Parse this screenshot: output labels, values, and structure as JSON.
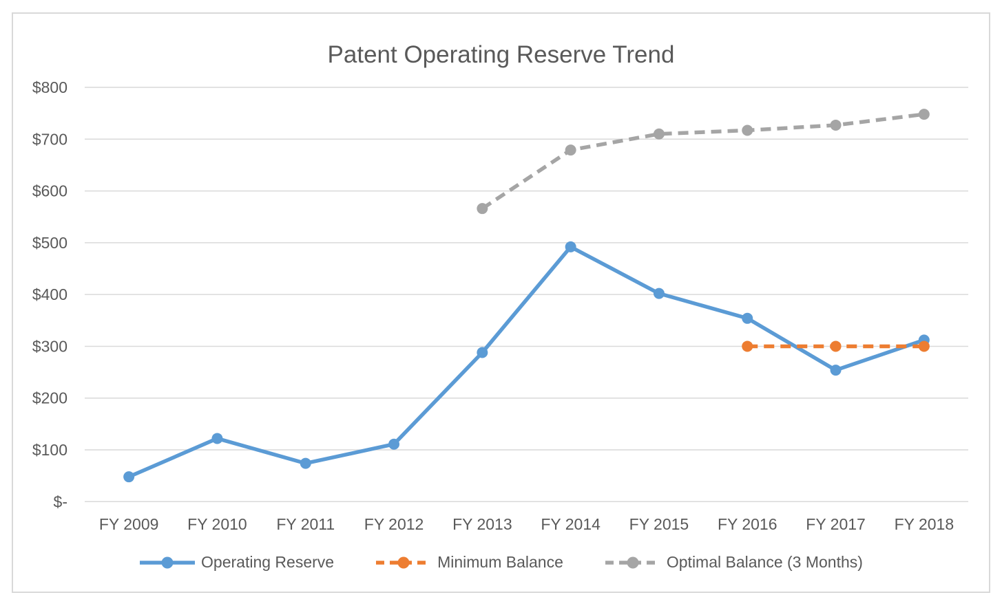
{
  "chart_data": {
    "type": "line",
    "title": "Patent Operating Reserve Trend",
    "xlabel": "",
    "ylabel": "",
    "categories": [
      "FY 2009",
      "FY 2010",
      "FY 2011",
      "FY 2012",
      "FY 2013",
      "FY 2014",
      "FY 2015",
      "FY 2016",
      "FY 2017",
      "FY 2018"
    ],
    "ylim": [
      0,
      800
    ],
    "y_tick_step": 100,
    "y_ticks": [
      {
        "value": 800,
        "label": "$800"
      },
      {
        "value": 700,
        "label": "$700"
      },
      {
        "value": 600,
        "label": "$600"
      },
      {
        "value": 500,
        "label": "$500"
      },
      {
        "value": 400,
        "label": "$400"
      },
      {
        "value": 300,
        "label": "$300"
      },
      {
        "value": 200,
        "label": "$200"
      },
      {
        "value": 100,
        "label": "$100"
      },
      {
        "value": 0,
        "label": "$-"
      }
    ],
    "grid": true,
    "legend_position": "bottom",
    "series": [
      {
        "name": "Operating Reserve",
        "slug": "operating-reserve",
        "color": "#5B9BD5",
        "line_style": "solid",
        "marker": "circle",
        "values": [
          48,
          122,
          74,
          111,
          288,
          492,
          402,
          354,
          254,
          312
        ]
      },
      {
        "name": "Minimum Balance",
        "slug": "minimum-balance",
        "color": "#ED7D31",
        "line_style": "dashed",
        "marker": "circle",
        "values": [
          null,
          null,
          null,
          null,
          null,
          null,
          null,
          300,
          300,
          300
        ]
      },
      {
        "name": "Optimal Balance (3 Months)",
        "slug": "optimal-balance-3-months",
        "color": "#A5A5A5",
        "line_style": "dashed",
        "marker": "circle",
        "values": [
          null,
          null,
          null,
          null,
          566,
          679,
          710,
          717,
          727,
          748
        ]
      }
    ]
  },
  "style": {
    "background": "#FFFFFF",
    "border_color": "#D9D9D9",
    "gridline_color": "#D9D9D9",
    "text_color": "#595959"
  }
}
